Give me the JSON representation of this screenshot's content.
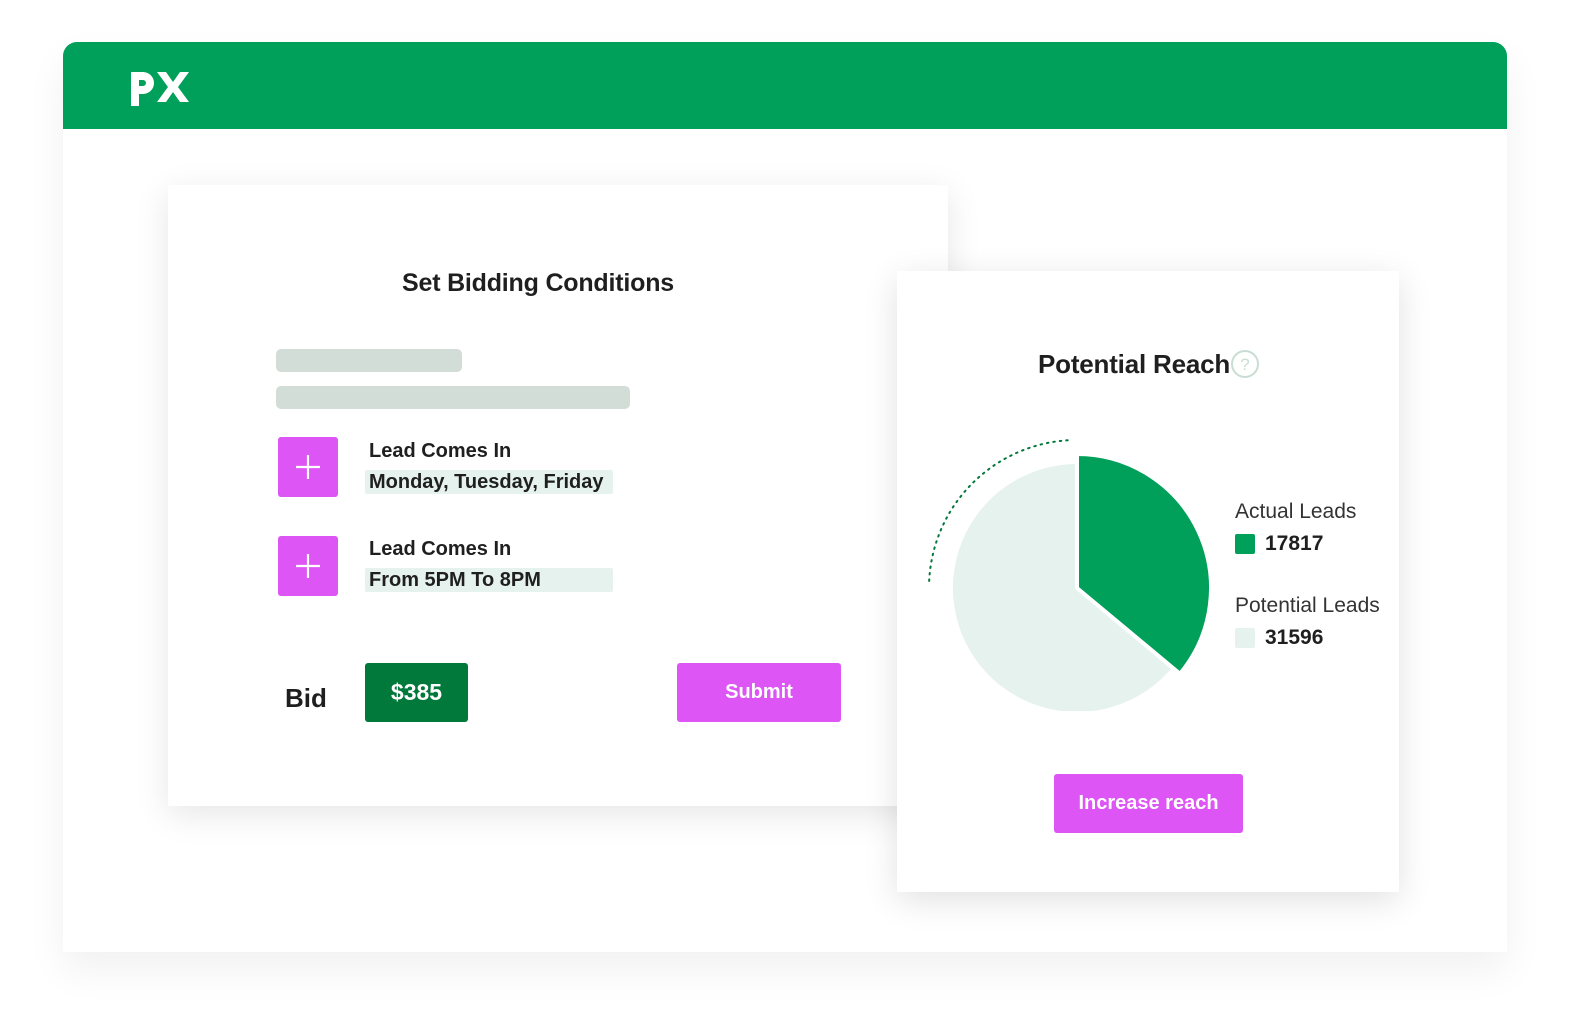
{
  "header": {
    "brand_color": "#00a05a",
    "logo_text": "px",
    "logo_icon": "px-logo-icon"
  },
  "bidding": {
    "title": "Set Bidding Conditions",
    "conditions": [
      {
        "title": "Lead Comes In",
        "value": "Monday, Tuesday, Friday",
        "icon": "plus-icon"
      },
      {
        "title": "Lead Comes In",
        "value": "From 5PM To 8PM",
        "icon": "plus-icon"
      }
    ],
    "bid_label": "Bid",
    "bid_amount": "$385",
    "submit_label": "Submit"
  },
  "reach": {
    "title": "Potential Reach",
    "help_icon": "question-circle-icon",
    "increase_label": "Increase reach"
  },
  "chart_data": {
    "type": "pie",
    "title": "Potential Reach",
    "categories": [
      "Actual Leads",
      "Potential Leads"
    ],
    "values": [
      17817,
      31596
    ],
    "colors": [
      "#00a05a",
      "#e6f2ee"
    ],
    "legend": [
      {
        "label": "Actual Leads",
        "value": "17817"
      },
      {
        "label": "Potential Leads",
        "value": "31596"
      }
    ],
    "legend_position": "right"
  },
  "colors": {
    "accent": "#dd55f5",
    "bid_green": "#00793a",
    "skeleton": "#d3ddd8"
  }
}
